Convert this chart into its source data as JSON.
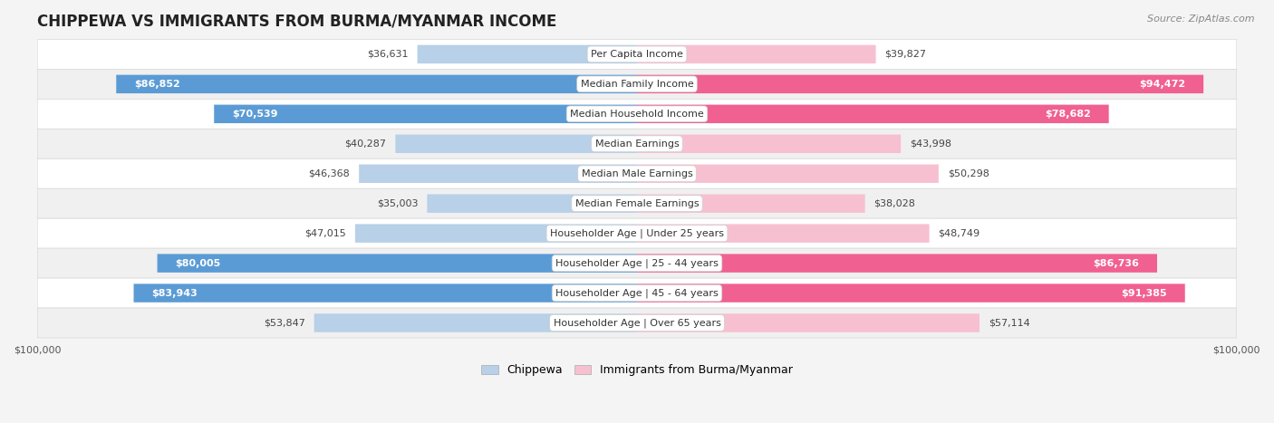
{
  "title": "CHIPPEWA VS IMMIGRANTS FROM BURMA/MYANMAR INCOME",
  "source": "Source: ZipAtlas.com",
  "categories": [
    "Per Capita Income",
    "Median Family Income",
    "Median Household Income",
    "Median Earnings",
    "Median Male Earnings",
    "Median Female Earnings",
    "Householder Age | Under 25 years",
    "Householder Age | 25 - 44 years",
    "Householder Age | 45 - 64 years",
    "Householder Age | Over 65 years"
  ],
  "chippewa_values": [
    36631,
    86852,
    70539,
    40287,
    46368,
    35003,
    47015,
    80005,
    83943,
    53847
  ],
  "burma_values": [
    39827,
    94472,
    78682,
    43998,
    50298,
    38028,
    48749,
    86736,
    91385,
    57114
  ],
  "chippewa_labels": [
    "$36,631",
    "$86,852",
    "$70,539",
    "$40,287",
    "$46,368",
    "$35,003",
    "$47,015",
    "$80,005",
    "$83,943",
    "$53,847"
  ],
  "burma_labels": [
    "$39,827",
    "$94,472",
    "$78,682",
    "$43,998",
    "$50,298",
    "$38,028",
    "$48,749",
    "$86,736",
    "$91,385",
    "$57,114"
  ],
  "chippewa_light": "#b8d0e8",
  "chippewa_dark": "#5b9bd5",
  "burma_light": "#f7c0d0",
  "burma_dark": "#f06090",
  "threshold": 65000,
  "max_value": 100000,
  "bg_color": "#f4f4f4",
  "row_colors": [
    "#ffffff",
    "#f0f0f0"
  ],
  "row_border": "#d8d8d8",
  "title_fontsize": 12,
  "cat_fontsize": 8,
  "val_fontsize": 8,
  "legend_fontsize": 9,
  "source_fontsize": 8
}
